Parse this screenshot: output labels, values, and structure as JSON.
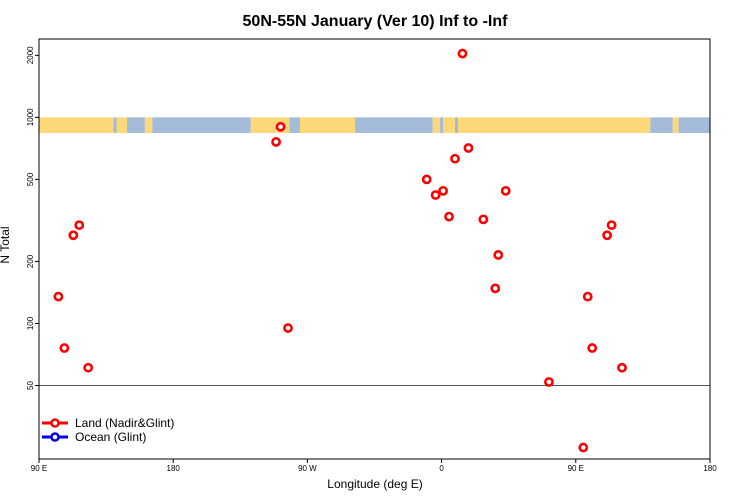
{
  "chart_data": {
    "type": "scatter",
    "title": "50N-55N January (Ver 10)   Inf to -Inf",
    "xlabel": "Longitude (deg E)",
    "ylabel": "N Total",
    "x_scale": "linear",
    "y_scale": "log",
    "xlim": [
      90,
      540
    ],
    "ylim": [
      22,
      2400
    ],
    "x_ticks": [
      {
        "value": 90,
        "label": "90 E"
      },
      {
        "value": 180,
        "label": "180"
      },
      {
        "value": 270,
        "label": "90 W"
      },
      {
        "value": 360,
        "label": "0"
      },
      {
        "value": 450,
        "label": "90 E"
      },
      {
        "value": 540,
        "label": "180"
      }
    ],
    "y_ticks": [
      {
        "value": 50,
        "label": "50"
      },
      {
        "value": 100,
        "label": "100"
      },
      {
        "value": 200,
        "label": "200"
      },
      {
        "value": 500,
        "label": "500"
      },
      {
        "value": 1000,
        "label": "1000"
      },
      {
        "value": 2000,
        "label": "2000"
      }
    ],
    "reference_line": {
      "y": 50
    },
    "map_strip": {
      "y_range": [
        840,
        1000
      ],
      "land_color": "#fcd878",
      "ocean_color": "#a3bad8",
      "segments": [
        {
          "x0": 90,
          "x1": 140,
          "kind": "land"
        },
        {
          "x0": 140,
          "x1": 142,
          "kind": "ocean"
        },
        {
          "x0": 142,
          "x1": 149,
          "kind": "land"
        },
        {
          "x0": 149,
          "x1": 161,
          "kind": "ocean"
        },
        {
          "x0": 161,
          "x1": 166,
          "kind": "land"
        },
        {
          "x0": 166,
          "x1": 232,
          "kind": "ocean"
        },
        {
          "x0": 232,
          "x1": 258,
          "kind": "land"
        },
        {
          "x0": 258,
          "x1": 265,
          "kind": "ocean"
        },
        {
          "x0": 265,
          "x1": 302,
          "kind": "land"
        },
        {
          "x0": 302,
          "x1": 354,
          "kind": "ocean"
        },
        {
          "x0": 354,
          "x1": 359,
          "kind": "land"
        },
        {
          "x0": 359,
          "x1": 361,
          "kind": "ocean"
        },
        {
          "x0": 361,
          "x1": 369,
          "kind": "land"
        },
        {
          "x0": 369,
          "x1": 371,
          "kind": "ocean"
        },
        {
          "x0": 371,
          "x1": 500,
          "kind": "land"
        },
        {
          "x0": 500,
          "x1": 515,
          "kind": "ocean"
        },
        {
          "x0": 515,
          "x1": 519,
          "kind": "land"
        },
        {
          "x0": 519,
          "x1": 540,
          "kind": "ocean"
        }
      ]
    },
    "legend": {
      "placement": "bottom-left",
      "entries": [
        {
          "label": "Land (Nadir&Glint)",
          "color": "#ff0000"
        },
        {
          "label": "Ocean (Glint)",
          "color": "#0000ee"
        }
      ]
    },
    "series": [
      {
        "name": "Land (Nadir&Glint)",
        "color": "#ff0000",
        "points": [
          {
            "x": 103,
            "y": 135
          },
          {
            "x": 107,
            "y": 76
          },
          {
            "x": 113,
            "y": 268
          },
          {
            "x": 117,
            "y": 300
          },
          {
            "x": 123,
            "y": 61
          },
          {
            "x": 249,
            "y": 760
          },
          {
            "x": 252,
            "y": 900
          },
          {
            "x": 257,
            "y": 95
          },
          {
            "x": 350,
            "y": 500
          },
          {
            "x": 356,
            "y": 420
          },
          {
            "x": 361,
            "y": 440
          },
          {
            "x": 365,
            "y": 330
          },
          {
            "x": 369,
            "y": 630
          },
          {
            "x": 374,
            "y": 2040
          },
          {
            "x": 378,
            "y": 710
          },
          {
            "x": 388,
            "y": 320
          },
          {
            "x": 396,
            "y": 148
          },
          {
            "x": 398,
            "y": 215
          },
          {
            "x": 403,
            "y": 440
          },
          {
            "x": 432,
            "y": 52
          },
          {
            "x": 455,
            "y": 25
          },
          {
            "x": 458,
            "y": 135
          },
          {
            "x": 461,
            "y": 76
          },
          {
            "x": 471,
            "y": 268
          },
          {
            "x": 474,
            "y": 300
          },
          {
            "x": 481,
            "y": 61
          }
        ]
      },
      {
        "name": "Ocean (Glint)",
        "color": "#0000ee",
        "points": []
      }
    ]
  }
}
